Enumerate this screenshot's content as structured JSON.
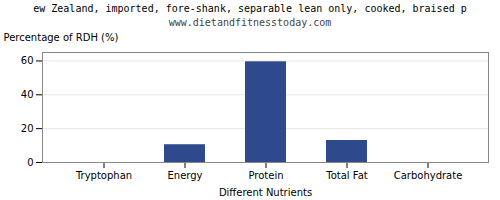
{
  "chart_data": {
    "type": "bar",
    "title": "ew Zealand, imported, fore-shank, separable lean only, cooked, braised p",
    "subtitle": "www.dietandfitnesstoday.com",
    "xlabel": "Different Nutrients",
    "ylabel": "Percentage of RDH (%)",
    "categories": [
      "Tryptophan",
      "Energy",
      "Protein",
      "Total Fat",
      "Carbohydrate"
    ],
    "values": [
      0.0,
      10.5,
      59.5,
      13.0,
      0.0
    ],
    "color": "#2e4a8c",
    "ylim": [
      0,
      65
    ],
    "yticks": [
      0,
      20,
      40,
      60
    ],
    "grid": true
  }
}
